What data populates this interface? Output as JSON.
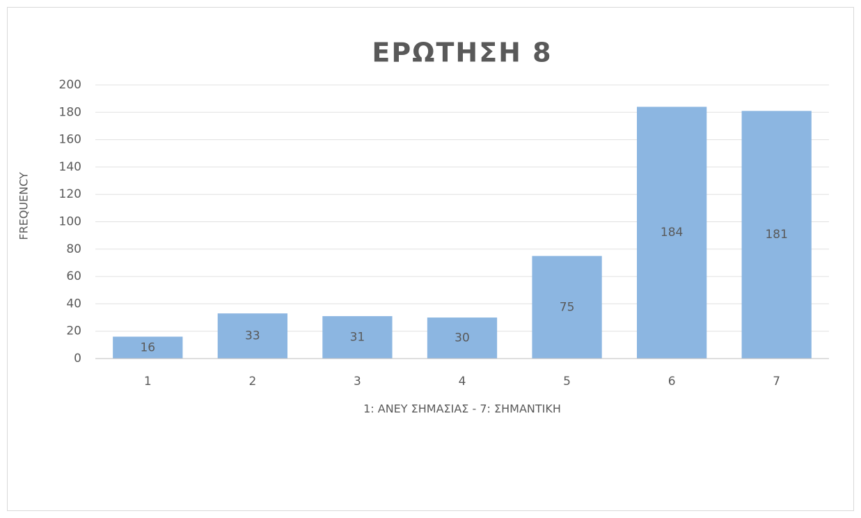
{
  "chart_data": {
    "type": "bar",
    "title": "ΕΡΩΤΗΣΗ 8",
    "x_label": "1: ΑΝΕΥ ΣΗΜΑΣΙΑΣ - 7: ΣΗΜΑΝΤΙΚΗ",
    "y_label": "FREQUENCY",
    "categories": [
      "1",
      "2",
      "3",
      "4",
      "5",
      "6",
      "7"
    ],
    "values": [
      16,
      33,
      31,
      30,
      75,
      184,
      181
    ],
    "color": "#8cb6e1",
    "ylim": [
      0,
      200
    ],
    "yticks": [
      0,
      20,
      40,
      60,
      80,
      100,
      120,
      140,
      160,
      180,
      200
    ],
    "grid": true
  }
}
